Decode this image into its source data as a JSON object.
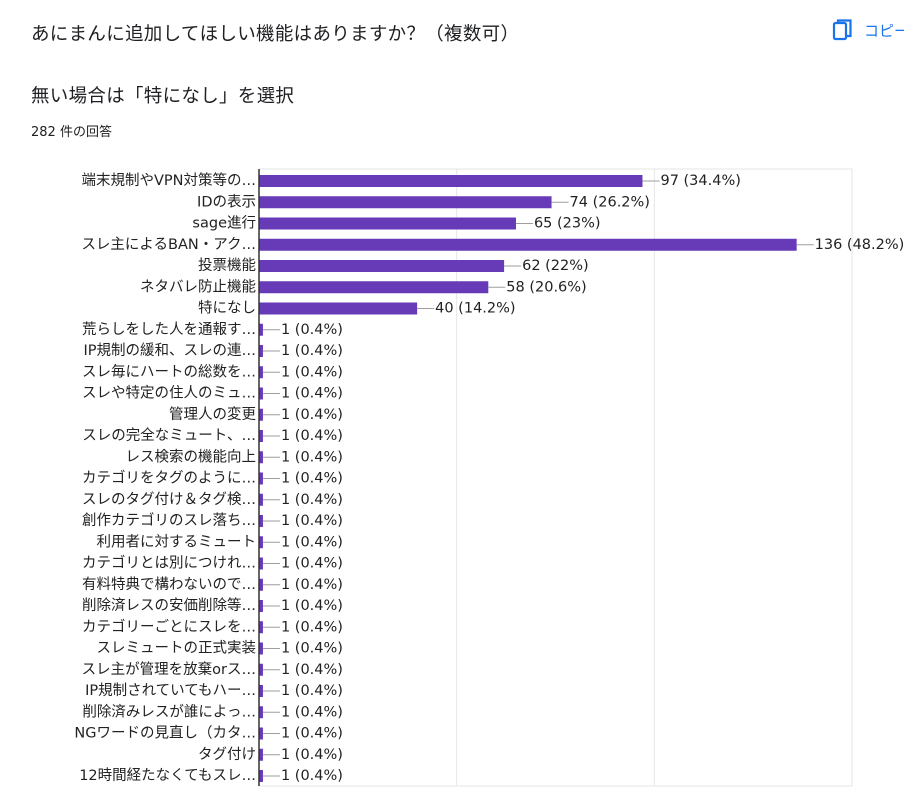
{
  "question": {
    "title": "あにまんに追加してほしい機能はありますか？（複数可）",
    "description": "無い場合は「特になし」を選択",
    "response_count": "282 件の回答"
  },
  "toolbar": {
    "copy_label": "コピー",
    "copy_icon": "copy-icon",
    "accent_color": "#1a73e8"
  },
  "chart_data": {
    "type": "bar",
    "orientation": "horizontal",
    "bar_color": "#673ab7",
    "grid": true,
    "xlim": [
      0,
      150
    ],
    "categories": [
      "端末規制やVPN対策等の…",
      "IDの表示",
      "sage進行",
      "スレ主によるBAN・アク…",
      "投票機能",
      "ネタバレ防止機能",
      "特になし",
      "荒らしをした人を通報す…",
      "IP規制の緩和、スレの連…",
      "スレ毎にハートの総数を…",
      "スレや特定の住人のミュ…",
      "管理人の変更",
      "スレの完全なミュート、…",
      "レス検索の機能向上",
      "カテゴリをタグのように…",
      "スレのタグ付け＆タグ検…",
      "創作カテゴリのスレ落ち…",
      "利用者に対するミュート",
      "カテゴリとは別につけれ…",
      "有料特典で構わないので…",
      "削除済レスの安価削除等…",
      "カテゴリーごとにスレを…",
      "スレミュートの正式実装",
      "スレ主が管理を放棄orス…",
      "IP規制されていてもハー…",
      "削除済みレスが誰によっ…",
      "NGワードの見直し（カタ…",
      "タグ付け",
      "12時間経たなくてもスレ…"
    ],
    "values": [
      97,
      74,
      65,
      136,
      62,
      58,
      40,
      1,
      1,
      1,
      1,
      1,
      1,
      1,
      1,
      1,
      1,
      1,
      1,
      1,
      1,
      1,
      1,
      1,
      1,
      1,
      1,
      1,
      1
    ],
    "data_labels": [
      "97 (34.4%)",
      "74 (26.2%)",
      "65 (23%)",
      "136 (48.2%)",
      "62 (22%)",
      "58 (20.6%)",
      "40 (14.2%)",
      "1 (0.4%)",
      "1 (0.4%)",
      "1 (0.4%)",
      "1 (0.4%)",
      "1 (0.4%)",
      "1 (0.4%)",
      "1 (0.4%)",
      "1 (0.4%)",
      "1 (0.4%)",
      "1 (0.4%)",
      "1 (0.4%)",
      "1 (0.4%)",
      "1 (0.4%)",
      "1 (0.4%)",
      "1 (0.4%)",
      "1 (0.4%)",
      "1 (0.4%)",
      "1 (0.4%)",
      "1 (0.4%)",
      "1 (0.4%)",
      "1 (0.4%)",
      "1 (0.4%)"
    ]
  }
}
